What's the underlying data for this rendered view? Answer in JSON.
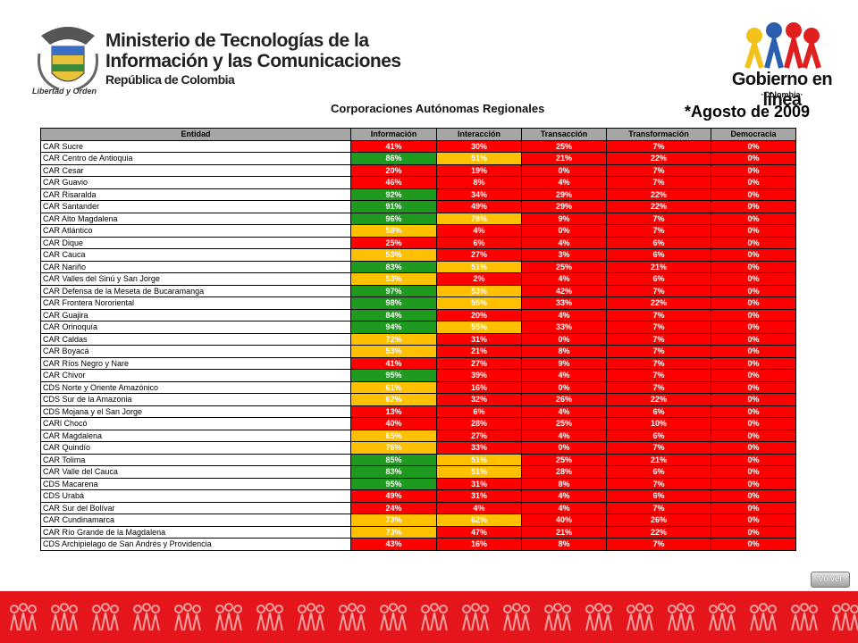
{
  "header": {
    "ministry_line1": "Ministerio de Tecnologías de la",
    "ministry_line2": "Información y las Comunicaciones",
    "ministry_line3": "República de Colombia",
    "motto": "Libertad y Orden",
    "brand": "Gobierno en línea",
    "brand_sub": "·Colombia·"
  },
  "title": "Corporaciones Autónomas Regionales",
  "date": "*Agosto de 2009",
  "palette": {
    "G": "#1e9a1e",
    "Y": "#ffc000",
    "R": "#ff0000"
  },
  "table": {
    "columns": [
      "Entidad",
      "Información",
      "Interacción",
      "Transacción",
      "Transformación",
      "Democracia"
    ],
    "rows": [
      {
        "entity": "CAR Sucre",
        "values": [
          "41%",
          "30%",
          "25%",
          "7%",
          "0%"
        ],
        "colors": [
          "R",
          "R",
          "R",
          "R",
          "R"
        ]
      },
      {
        "entity": "CAR Centro de Antioquia",
        "values": [
          "86%",
          "51%",
          "21%",
          "22%",
          "0%"
        ],
        "colors": [
          "G",
          "Y",
          "R",
          "R",
          "R"
        ]
      },
      {
        "entity": "CAR Cesar",
        "values": [
          "20%",
          "19%",
          "0%",
          "7%",
          "0%"
        ],
        "colors": [
          "R",
          "R",
          "R",
          "R",
          "R"
        ]
      },
      {
        "entity": "CAR Guavio",
        "values": [
          "46%",
          "8%",
          "4%",
          "7%",
          "0%"
        ],
        "colors": [
          "R",
          "R",
          "R",
          "R",
          "R"
        ]
      },
      {
        "entity": "CAR Risaralda",
        "values": [
          "92%",
          "34%",
          "29%",
          "22%",
          "0%"
        ],
        "colors": [
          "G",
          "R",
          "R",
          "R",
          "R"
        ]
      },
      {
        "entity": "CAR Santander",
        "values": [
          "91%",
          "49%",
          "29%",
          "22%",
          "0%"
        ],
        "colors": [
          "G",
          "R",
          "R",
          "R",
          "R"
        ]
      },
      {
        "entity": "CAR Alto Magdalena",
        "values": [
          "96%",
          "78%",
          "9%",
          "7%",
          "0%"
        ],
        "colors": [
          "G",
          "Y",
          "R",
          "R",
          "R"
        ]
      },
      {
        "entity": "CAR Atlántico",
        "values": [
          "58%",
          "4%",
          "0%",
          "7%",
          "0%"
        ],
        "colors": [
          "Y",
          "R",
          "R",
          "R",
          "R"
        ]
      },
      {
        "entity": "CAR Dique",
        "values": [
          "25%",
          "6%",
          "4%",
          "6%",
          "0%"
        ],
        "colors": [
          "R",
          "R",
          "R",
          "R",
          "R"
        ]
      },
      {
        "entity": "CAR Cauca",
        "values": [
          "53%",
          "27%",
          "3%",
          "6%",
          "0%"
        ],
        "colors": [
          "Y",
          "R",
          "R",
          "R",
          "R"
        ]
      },
      {
        "entity": "CAR Nariño",
        "values": [
          "83%",
          "51%",
          "25%",
          "21%",
          "0%"
        ],
        "colors": [
          "G",
          "Y",
          "R",
          "R",
          "R"
        ]
      },
      {
        "entity": "CAR Valles del Sinú y San Jorge",
        "values": [
          "53%",
          "2%",
          "4%",
          "6%",
          "0%"
        ],
        "colors": [
          "Y",
          "R",
          "R",
          "R",
          "R"
        ]
      },
      {
        "entity": "CAR Defensa de la Meseta de Bucaramanga",
        "values": [
          "97%",
          "53%",
          "42%",
          "7%",
          "0%"
        ],
        "colors": [
          "G",
          "Y",
          "R",
          "R",
          "R"
        ]
      },
      {
        "entity": "CAR Frontera Nororiental",
        "values": [
          "98%",
          "55%",
          "33%",
          "22%",
          "0%"
        ],
        "colors": [
          "G",
          "Y",
          "R",
          "R",
          "R"
        ]
      },
      {
        "entity": "CAR Guajira",
        "values": [
          "84%",
          "20%",
          "4%",
          "7%",
          "0%"
        ],
        "colors": [
          "G",
          "R",
          "R",
          "R",
          "R"
        ]
      },
      {
        "entity": "CAR Orinoquía",
        "values": [
          "94%",
          "55%",
          "33%",
          "7%",
          "0%"
        ],
        "colors": [
          "G",
          "Y",
          "R",
          "R",
          "R"
        ]
      },
      {
        "entity": "CAR Caldas",
        "values": [
          "72%",
          "31%",
          "0%",
          "7%",
          "0%"
        ],
        "colors": [
          "Y",
          "R",
          "R",
          "R",
          "R"
        ]
      },
      {
        "entity": "CAR Boyacá",
        "values": [
          "53%",
          "21%",
          "8%",
          "7%",
          "0%"
        ],
        "colors": [
          "Y",
          "R",
          "R",
          "R",
          "R"
        ]
      },
      {
        "entity": "CAR Ríos Negro y Nare",
        "values": [
          "41%",
          "27%",
          "9%",
          "7%",
          "0%"
        ],
        "colors": [
          "R",
          "R",
          "R",
          "R",
          "R"
        ]
      },
      {
        "entity": "CAR Chivor",
        "values": [
          "95%",
          "39%",
          "4%",
          "7%",
          "0%"
        ],
        "colors": [
          "G",
          "R",
          "R",
          "R",
          "R"
        ]
      },
      {
        "entity": "CDS Norte y Oriente Amazónico",
        "values": [
          "61%",
          "16%",
          "0%",
          "7%",
          "0%"
        ],
        "colors": [
          "Y",
          "R",
          "R",
          "R",
          "R"
        ]
      },
      {
        "entity": "CDS Sur de la Amazonia",
        "values": [
          "62%",
          "32%",
          "26%",
          "22%",
          "0%"
        ],
        "colors": [
          "Y",
          "R",
          "R",
          "R",
          "R"
        ]
      },
      {
        "entity": "CDS Mojana y el San Jorge",
        "values": [
          "13%",
          "6%",
          "4%",
          "6%",
          "0%"
        ],
        "colors": [
          "R",
          "R",
          "R",
          "R",
          "R"
        ]
      },
      {
        "entity": "CARl Chocó",
        "values": [
          "40%",
          "28%",
          "25%",
          "10%",
          "0%"
        ],
        "colors": [
          "R",
          "R",
          "R",
          "R",
          "R"
        ]
      },
      {
        "entity": "CAR Magdalena",
        "values": [
          "65%",
          "27%",
          "4%",
          "6%",
          "0%"
        ],
        "colors": [
          "Y",
          "R",
          "R",
          "R",
          "R"
        ]
      },
      {
        "entity": "CAR Quindío",
        "values": [
          "76%",
          "33%",
          "0%",
          "7%",
          "0%"
        ],
        "colors": [
          "Y",
          "R",
          "R",
          "R",
          "R"
        ]
      },
      {
        "entity": "CAR Tolima",
        "values": [
          "85%",
          "51%",
          "25%",
          "21%",
          "0%"
        ],
        "colors": [
          "G",
          "Y",
          "R",
          "R",
          "R"
        ]
      },
      {
        "entity": "CAR Valle del Cauca",
        "values": [
          "83%",
          "51%",
          "28%",
          "6%",
          "0%"
        ],
        "colors": [
          "G",
          "Y",
          "R",
          "R",
          "R"
        ]
      },
      {
        "entity": "CDS Macarena",
        "values": [
          "95%",
          "31%",
          "8%",
          "7%",
          "0%"
        ],
        "colors": [
          "G",
          "R",
          "R",
          "R",
          "R"
        ]
      },
      {
        "entity": "CDS Urabá",
        "values": [
          "49%",
          "31%",
          "4%",
          "6%",
          "0%"
        ],
        "colors": [
          "R",
          "R",
          "R",
          "R",
          "R"
        ]
      },
      {
        "entity": "CAR Sur del Bolívar",
        "values": [
          "24%",
          "4%",
          "4%",
          "7%",
          "0%"
        ],
        "colors": [
          "R",
          "R",
          "R",
          "R",
          "R"
        ]
      },
      {
        "entity": "CAR Cundinamarca",
        "values": [
          "73%",
          "62%",
          "40%",
          "26%",
          "0%"
        ],
        "colors": [
          "Y",
          "Y",
          "R",
          "R",
          "R"
        ]
      },
      {
        "entity": "CAR Río Grande de la Magdalena",
        "values": [
          "73%",
          "47%",
          "21%",
          "22%",
          "0%"
        ],
        "colors": [
          "Y",
          "R",
          "R",
          "R",
          "R"
        ]
      },
      {
        "entity": "CDS Archipielago de San Andrés y Providencia",
        "values": [
          "43%",
          "16%",
          "8%",
          "7%",
          "0%"
        ],
        "colors": [
          "R",
          "R",
          "R",
          "R",
          "R"
        ]
      }
    ]
  },
  "button": "Volver"
}
